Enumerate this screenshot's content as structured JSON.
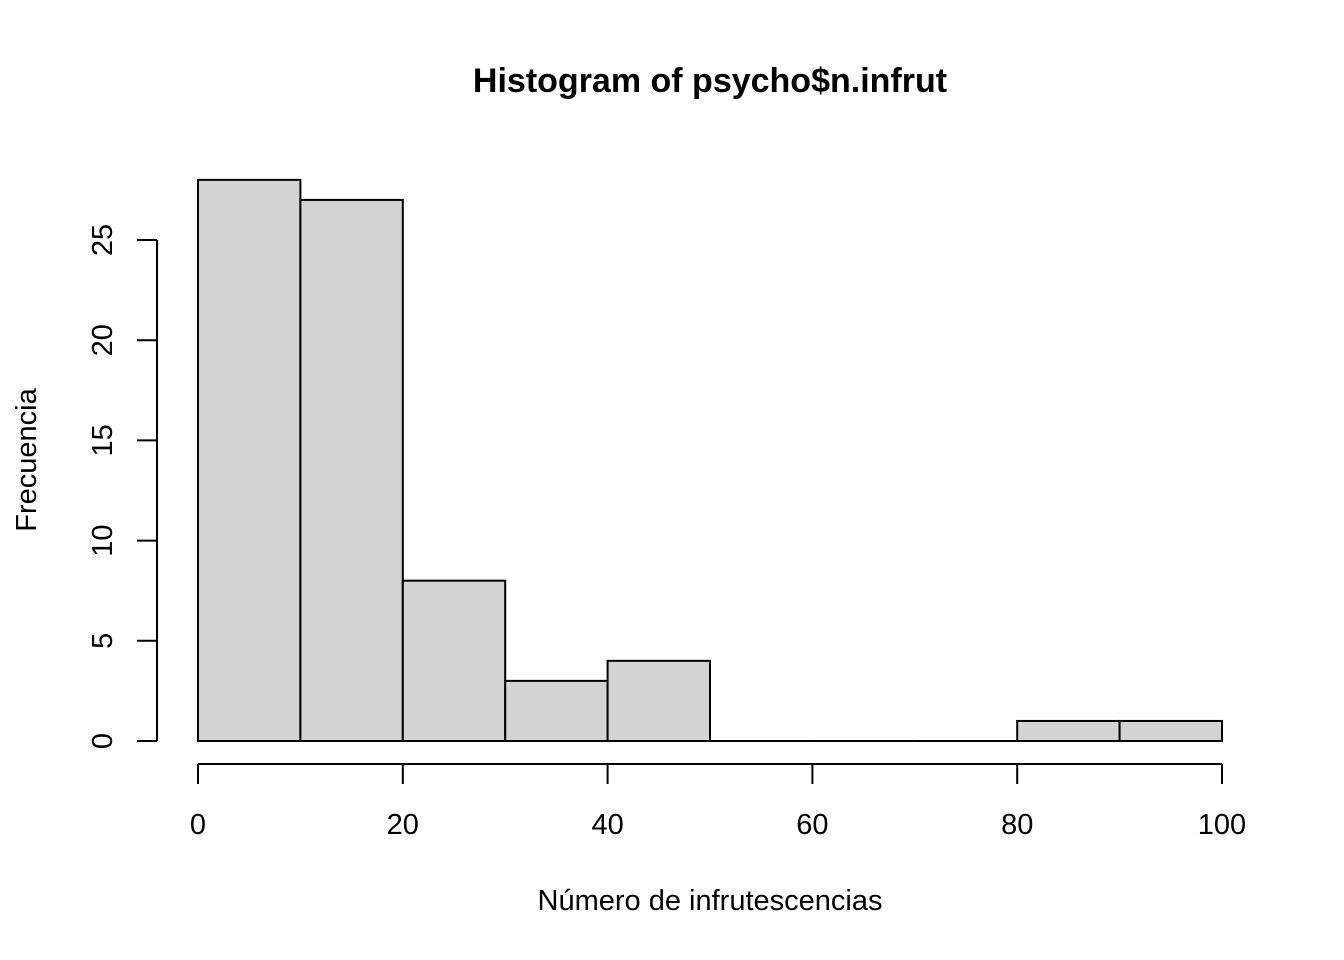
{
  "chart_data": {
    "type": "bar",
    "title": "Histogram of psycho$n.infrut",
    "xlabel": "Número de infrutescencias",
    "ylabel": "Frecuencia",
    "bins": [
      {
        "start": 0,
        "end": 10,
        "count": 28
      },
      {
        "start": 10,
        "end": 20,
        "count": 27
      },
      {
        "start": 20,
        "end": 30,
        "count": 8
      },
      {
        "start": 30,
        "end": 40,
        "count": 3
      },
      {
        "start": 40,
        "end": 50,
        "count": 4
      },
      {
        "start": 50,
        "end": 60,
        "count": 0
      },
      {
        "start": 60,
        "end": 70,
        "count": 0
      },
      {
        "start": 70,
        "end": 80,
        "count": 0
      },
      {
        "start": 80,
        "end": 90,
        "count": 1
      },
      {
        "start": 90,
        "end": 100,
        "count": 1
      }
    ],
    "xlim": [
      0,
      100
    ],
    "ylim": [
      0,
      28
    ],
    "x_ticks": [
      "0",
      "20",
      "40",
      "60",
      "80",
      "100"
    ],
    "y_ticks": [
      "0",
      "5",
      "10",
      "15",
      "20",
      "25"
    ],
    "bar_color": "#d3d3d3",
    "grid": false
  }
}
